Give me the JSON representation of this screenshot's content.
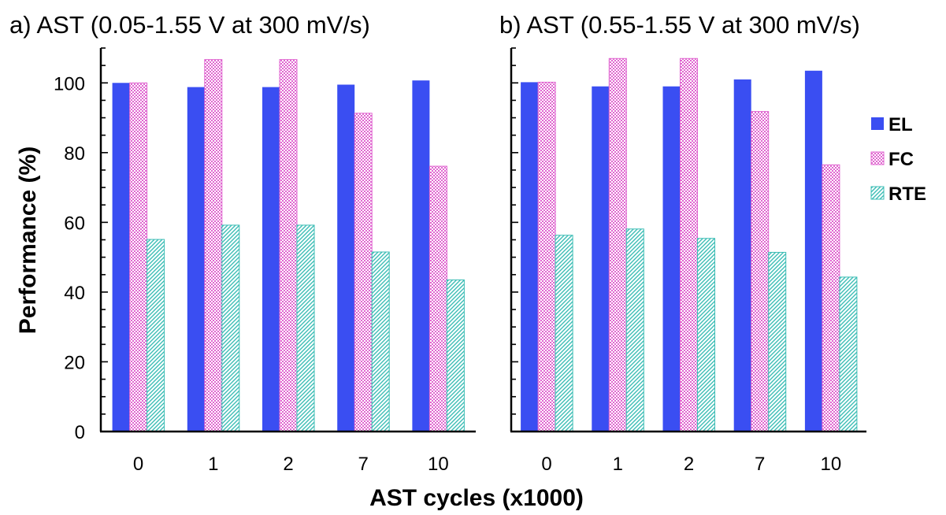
{
  "chart_data": {
    "type": "bar",
    "ylabel": "Performance (%)",
    "xlabel": "AST cycles (x1000)",
    "ylim": [
      0,
      110
    ],
    "yticks": [
      0,
      20,
      40,
      60,
      80,
      100
    ],
    "legend_position": "right",
    "grid": false,
    "colors": {
      "EL": "#3a4ef2",
      "FC": "#e066d0",
      "RTE": "#3cbdb5"
    },
    "legend": [
      "EL",
      "FC",
      "RTE"
    ],
    "panels": [
      {
        "title": "a) AST (0.05-1.55 V at 300 mV/s)",
        "categories": [
          "0",
          "1",
          "2",
          "7",
          "10"
        ],
        "series": [
          {
            "name": "EL",
            "values": [
              100,
              98.8,
              98.8,
              99.5,
              100.7
            ]
          },
          {
            "name": "FC",
            "values": [
              100,
              106.7,
              106.7,
              91.3,
              76.1
            ]
          },
          {
            "name": "RTE",
            "values": [
              55.1,
              59.2,
              59.2,
              51.5,
              43.5
            ]
          }
        ]
      },
      {
        "title": "b) AST (0.55-1.55 V at 300 mV/s)",
        "categories": [
          "0",
          "1",
          "2",
          "7",
          "10"
        ],
        "series": [
          {
            "name": "EL",
            "values": [
              100.2,
              99,
              99,
              101,
              103.5
            ]
          },
          {
            "name": "FC",
            "values": [
              100.2,
              107,
              107,
              91.8,
              76.5
            ]
          },
          {
            "name": "RTE",
            "values": [
              56.3,
              58.1,
              55.4,
              51.4,
              44.3
            ]
          }
        ]
      }
    ]
  }
}
